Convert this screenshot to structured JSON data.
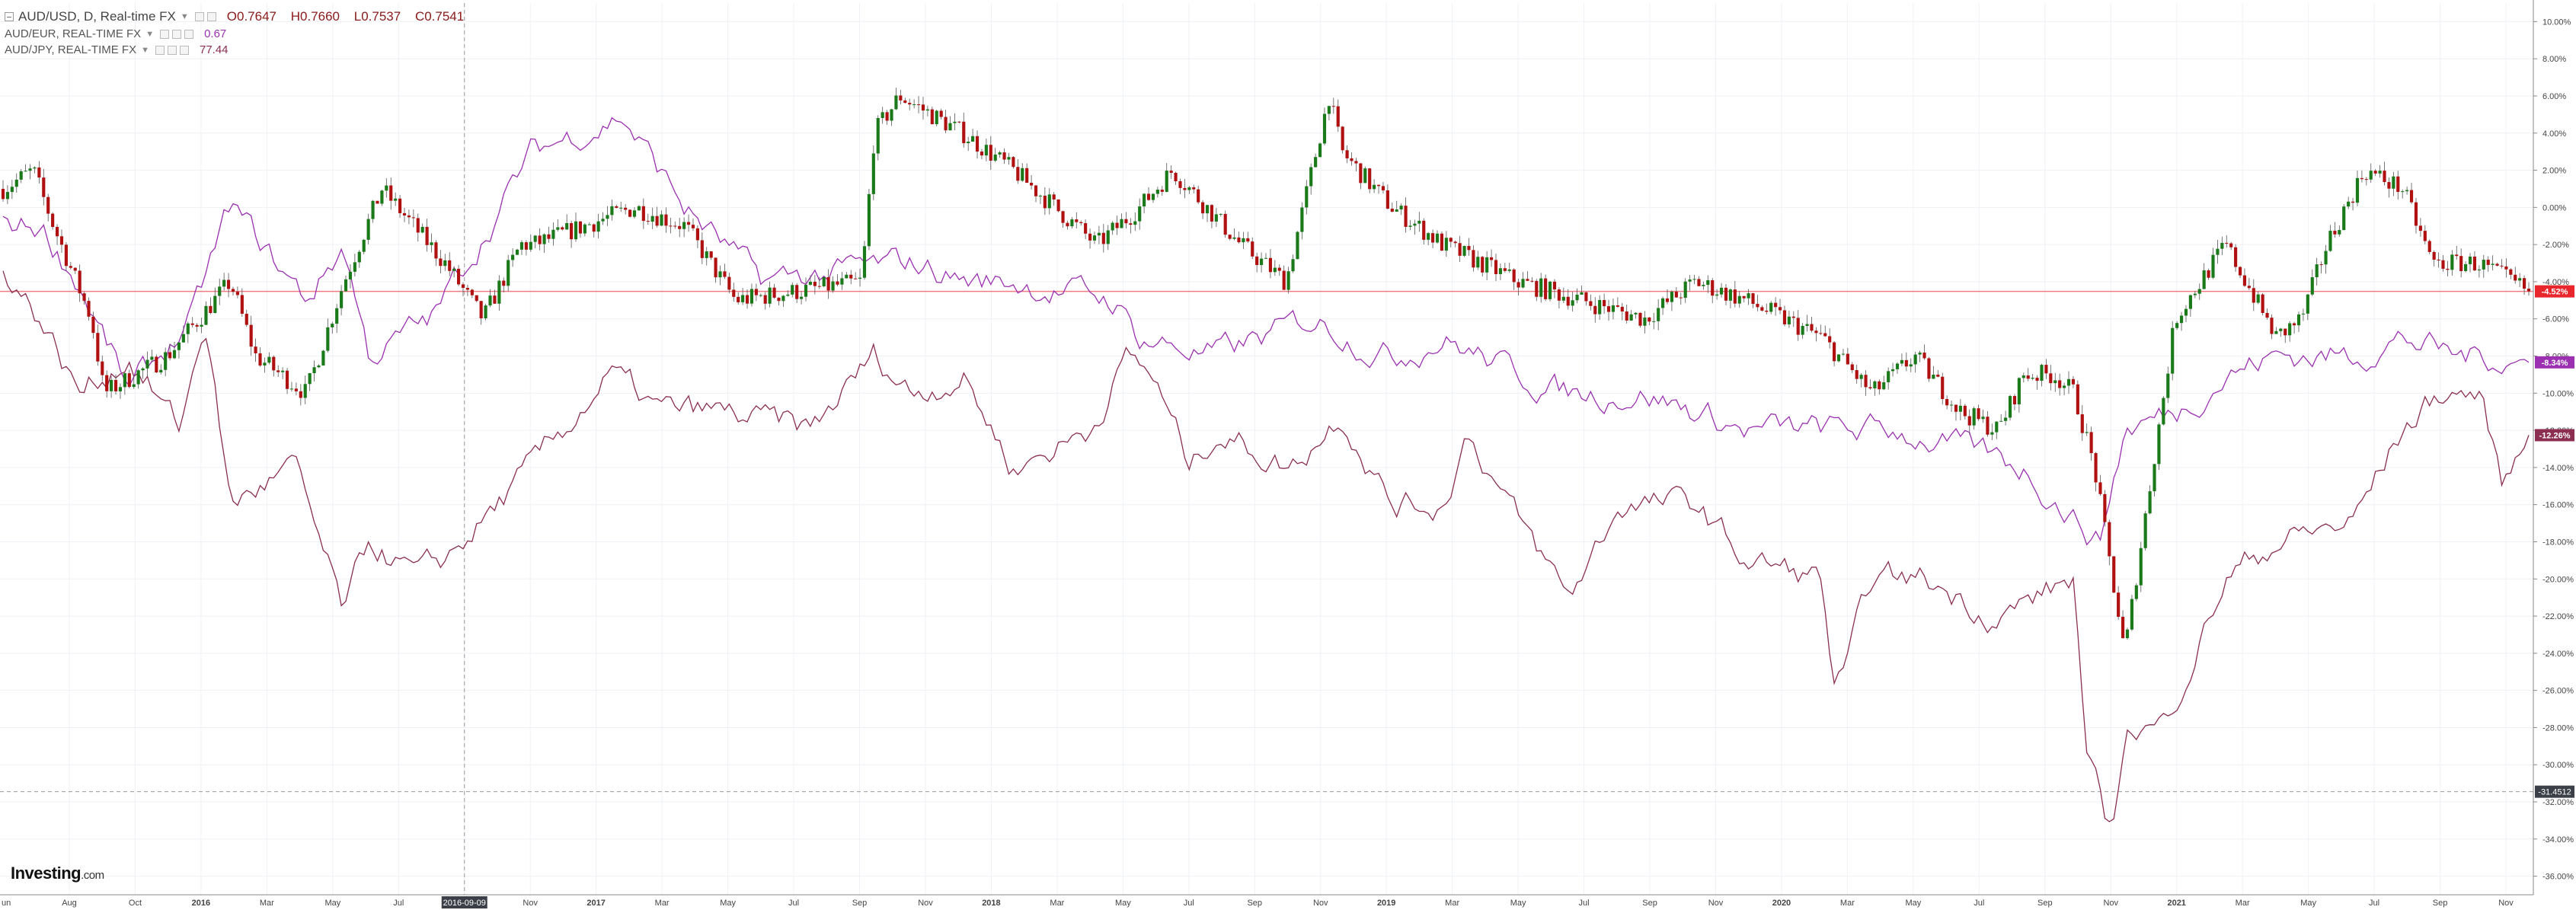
{
  "legend": {
    "main_label": "AUD/USD, D, Real-time FX",
    "open": "O0.7647",
    "high": "H0.7660",
    "low": "L0.7537",
    "close": "C0.7541",
    "items": [
      {
        "label": "AUD/EUR, REAL-TIME FX",
        "value": "0.67",
        "color": "#9b30b0"
      },
      {
        "label": "AUD/JPY, REAL-TIME FX",
        "value": "77.44",
        "color": "#8b2e50"
      }
    ]
  },
  "crosshair": {
    "date_label": "2016-09-09",
    "value_label": "-31.4512"
  },
  "branding": {
    "logo_text": "Investing",
    "logo_suffix": ".com"
  },
  "colors": {
    "up": "#1a7a1a",
    "down": "#b01010",
    "audeur": "#9b30b0",
    "audjpy": "#8b2e50",
    "price_line": "#e8262c",
    "grid": "#eef1f5"
  },
  "chart_data": {
    "type": "line",
    "x_ticks": [
      "un",
      "Aug",
      "Oct",
      "2016",
      "Mar",
      "May",
      "Jul",
      "2016-09-09",
      "Nov",
      "2017",
      "Mar",
      "May",
      "Jul",
      "Sep",
      "Nov",
      "2018",
      "Mar",
      "May",
      "Jul",
      "Sep",
      "Nov",
      "2019",
      "Mar",
      "May",
      "Jul",
      "Sep",
      "Nov",
      "2020",
      "Mar",
      "May",
      "Jul",
      "Sep",
      "Nov",
      "2021",
      "Mar",
      "May",
      "Jul",
      "Sep",
      "Nov"
    ],
    "y_ticks": [
      "10.00%",
      "8.00%",
      "6.00%",
      "4.00%",
      "2.00%",
      "0.00%",
      "-2.00%",
      "-4.00%",
      "-6.00%",
      "-8.00%",
      "-10.00%",
      "-12.00%",
      "-14.00%",
      "-16.00%",
      "-18.00%",
      "-20.00%",
      "-22.00%",
      "-24.00%",
      "-26.00%",
      "-28.00%",
      "-30.00%",
      "-32.00%",
      "-34.00%",
      "-36.00%"
    ],
    "ylim": [
      -37,
      11
    ],
    "y_unit": "%",
    "price_labels": [
      "-4.52%",
      "-8.34%",
      "-12.26%"
    ],
    "series": [
      {
        "name": "AUD/USD",
        "style": "candlestick",
        "t": [
          0,
          0.012,
          0.02,
          0.035,
          0.04,
          0.065,
          0.09,
          0.1,
          0.12,
          0.135,
          0.15,
          0.175,
          0.19,
          0.205,
          0.21,
          0.25,
          0.27,
          0.29,
          0.34,
          0.345,
          0.355,
          0.38,
          0.4,
          0.433,
          0.45,
          0.463,
          0.49,
          0.508,
          0.525,
          0.53,
          0.543,
          0.55,
          0.57,
          0.6,
          0.65,
          0.67,
          0.69,
          0.705,
          0.72,
          0.74,
          0.757,
          0.775,
          0.79,
          0.812,
          0.82,
          0.828,
          0.84,
          0.8,
          0.86,
          0.88,
          0.9,
          0.91,
          0.92,
          0.935,
          0.95,
          0.962,
          0.98,
          1.0
        ],
        "y": [
          1,
          2,
          -1,
          -6,
          -10,
          -8,
          -4,
          -8,
          -10,
          -4,
          1,
          -3,
          -6,
          -2,
          -2,
          0,
          -1,
          -5,
          -4,
          4,
          6,
          4,
          2,
          -2,
          0,
          2,
          -2,
          -4,
          6,
          3,
          1,
          0,
          -2,
          -4,
          -6,
          -4,
          -5,
          -6,
          -7,
          -10,
          -8,
          -11,
          -12,
          -9,
          -10,
          -14,
          -24,
          -9,
          -6,
          -2,
          -7,
          -6,
          -2,
          2,
          1,
          -3,
          -3,
          -4.52
        ]
      },
      {
        "name": "AUD/EUR",
        "style": "line",
        "t": [
          0,
          0.015,
          0.03,
          0.05,
          0.075,
          0.09,
          0.12,
          0.135,
          0.145,
          0.17,
          0.21,
          0.245,
          0.27,
          0.3,
          0.36,
          0.385,
          0.4,
          0.44,
          0.45,
          0.48,
          0.52,
          0.55,
          0.57,
          0.6,
          0.62,
          0.65,
          0.69,
          0.72,
          0.75,
          0.8,
          0.83,
          0.84,
          0.86,
          0.88,
          0.9,
          0.93,
          0.95,
          0.97,
          0.985,
          1.0
        ],
        "y": [
          -1,
          -1,
          -4,
          -10,
          -6,
          0,
          -5,
          -2,
          -8,
          -6,
          3,
          5,
          0,
          -4,
          -3,
          -4,
          -4,
          -5,
          -7,
          -8,
          -6,
          -8,
          -7,
          -9,
          -10,
          -10,
          -12,
          -12,
          -12,
          -14,
          -18,
          -12,
          -11,
          -9,
          -8,
          -8,
          -7,
          -8,
          -8,
          -8.34
        ]
      },
      {
        "name": "AUD/JPY",
        "style": "line",
        "t": [
          0,
          0.015,
          0.03,
          0.05,
          0.07,
          0.08,
          0.09,
          0.115,
          0.135,
          0.145,
          0.165,
          0.175,
          0.21,
          0.24,
          0.26,
          0.28,
          0.32,
          0.345,
          0.36,
          0.38,
          0.4,
          0.43,
          0.445,
          0.455,
          0.47,
          0.48,
          0.51,
          0.53,
          0.55,
          0.57,
          0.58,
          0.6,
          0.62,
          0.64,
          0.67,
          0.69,
          0.72,
          0.725,
          0.73,
          0.74,
          0.76,
          0.79,
          0.82,
          0.825,
          0.835,
          0.84,
          0.855,
          0.88,
          0.9,
          0.93,
          0.95,
          0.965,
          0.98,
          0.99,
          1.0
        ],
        "y": [
          -3,
          -6,
          -10,
          -8,
          -12,
          -6,
          -16,
          -14,
          -22,
          -18,
          -20,
          -19,
          -14,
          -9,
          -11,
          -11,
          -12,
          -8,
          -10,
          -9,
          -14,
          -12,
          -8,
          -9,
          -14,
          -12,
          -14,
          -11,
          -16,
          -16,
          -12,
          -17,
          -21,
          -16,
          -16,
          -19,
          -20,
          -26,
          -25,
          -20,
          -20,
          -22,
          -20,
          -30,
          -34,
          -28,
          -28,
          -20,
          -18,
          -17,
          -12,
          -10,
          -10,
          -15,
          -12.26
        ]
      }
    ]
  }
}
